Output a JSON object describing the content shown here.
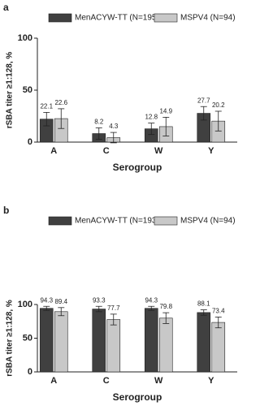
{
  "chart_data": [
    {
      "type": "bar",
      "label": "a",
      "ylabel": "rSBA titer ≥1:128, %",
      "xlabel": "Serogroup",
      "categories": [
        "A",
        "C",
        "W",
        "Y"
      ],
      "series": [
        {
          "name": "MenACYW-TT (N=195)",
          "color": "#404040",
          "values": [
            22.1,
            8.2,
            12.8,
            27.7
          ],
          "errors": [
            6.5,
            5.5,
            5.5,
            6.5
          ]
        },
        {
          "name": "MSPV4 (N=94)",
          "color": "#c8c8c8",
          "values": [
            22.6,
            4.3,
            14.9,
            20.2
          ],
          "errors": [
            9.5,
            5,
            9,
            9.5
          ]
        }
      ],
      "ylim": [
        0,
        100
      ],
      "yticks": [
        0,
        50,
        100
      ]
    },
    {
      "type": "bar",
      "label": "b",
      "ylabel": "rSBA titer ≥1:128, %",
      "xlabel": "Serogroup",
      "categories": [
        "A",
        "C",
        "W",
        "Y"
      ],
      "series": [
        {
          "name": "MenACYW-TT (N=193)",
          "color": "#404040",
          "values": [
            94.3,
            93.3,
            94.3,
            88.1
          ],
          "errors": [
            3,
            4,
            3,
            4
          ]
        },
        {
          "name": "MSPV4 (N=94)",
          "color": "#c8c8c8",
          "values": [
            89.4,
            77.7,
            79.8,
            73.4
          ],
          "errors": [
            6,
            8,
            8,
            8
          ]
        }
      ],
      "ylim": [
        0,
        100
      ],
      "yticks": [
        0,
        50,
        100
      ]
    }
  ]
}
